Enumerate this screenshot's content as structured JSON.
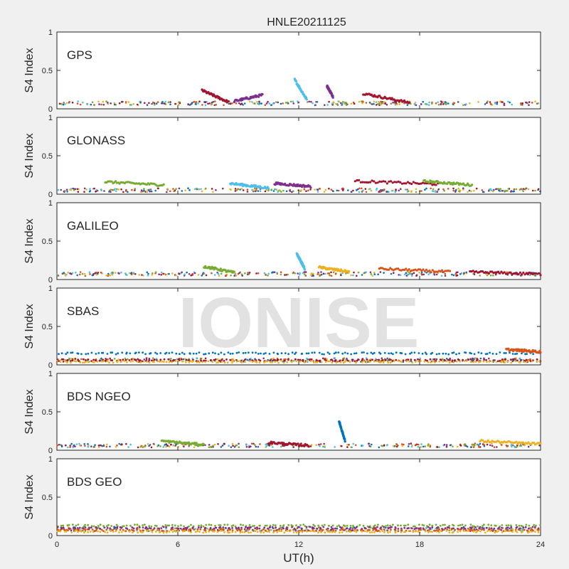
{
  "figure_title": "HNLE20211125",
  "watermark": "IONISE",
  "colors": [
    "#0072bd",
    "#d95319",
    "#edb120",
    "#7e2f8e",
    "#77ac30",
    "#4dbeee",
    "#a2142f"
  ],
  "chart_data": [
    {
      "type": "scatter",
      "panel": "GPS",
      "xlabel": "",
      "ylabel": "S4 Index",
      "xlim": [
        0,
        24
      ],
      "ylim": [
        0,
        1
      ],
      "xticks": [],
      "yticks": [
        "0",
        "0.5",
        "1"
      ],
      "background_level": 0.07,
      "features": [
        {
          "x": [
            7.2,
            8.5
          ],
          "y": [
            0.24,
            0.09
          ],
          "color": "#a2142f"
        },
        {
          "x": [
            8.8,
            10.2
          ],
          "y": [
            0.1,
            0.18
          ],
          "color": "#7e2f8e"
        },
        {
          "x": [
            11.8,
            12.4
          ],
          "y": [
            0.38,
            0.12
          ],
          "color": "#4dbeee"
        },
        {
          "x": [
            13.4,
            13.7
          ],
          "y": [
            0.3,
            0.16
          ],
          "color": "#7e2f8e"
        },
        {
          "x": [
            15.2,
            17.5
          ],
          "y": [
            0.2,
            0.08
          ],
          "color": "#a2142f"
        }
      ]
    },
    {
      "type": "scatter",
      "panel": "GLONASS",
      "xlabel": "",
      "ylabel": "S4 Index",
      "xlim": [
        0,
        24
      ],
      "ylim": [
        0,
        1
      ],
      "xticks": [],
      "yticks": [
        "0",
        "0.5",
        "1"
      ],
      "background_level": 0.05,
      "features": [
        {
          "x": [
            2.4,
            5.3
          ],
          "y": [
            0.16,
            0.12
          ],
          "color": "#77ac30"
        },
        {
          "x": [
            8.6,
            10.5
          ],
          "y": [
            0.14,
            0.08
          ],
          "color": "#4dbeee"
        },
        {
          "x": [
            10.8,
            12.6
          ],
          "y": [
            0.14,
            0.1
          ],
          "color": "#7e2f8e"
        },
        {
          "x": [
            14.8,
            19.0
          ],
          "y": [
            0.17,
            0.13
          ],
          "color": "#a2142f"
        },
        {
          "x": [
            18.2,
            20.6
          ],
          "y": [
            0.17,
            0.12
          ],
          "color": "#77ac30"
        }
      ]
    },
    {
      "type": "scatter",
      "panel": "GALILEO",
      "xlabel": "",
      "ylabel": "S4 Index",
      "xlim": [
        0,
        24
      ],
      "ylim": [
        0,
        1
      ],
      "xticks": [],
      "yticks": [
        "0",
        "0.5",
        "1"
      ],
      "background_level": 0.07,
      "features": [
        {
          "x": [
            7.3,
            8.8
          ],
          "y": [
            0.17,
            0.09
          ],
          "color": "#77ac30"
        },
        {
          "x": [
            11.9,
            12.3
          ],
          "y": [
            0.34,
            0.14
          ],
          "color": "#4dbeee"
        },
        {
          "x": [
            13.0,
            14.5
          ],
          "y": [
            0.16,
            0.1
          ],
          "color": "#edb120"
        },
        {
          "x": [
            16.0,
            19.5
          ],
          "y": [
            0.14,
            0.1
          ],
          "color": "#d95319"
        },
        {
          "x": [
            20.5,
            24.0
          ],
          "y": [
            0.1,
            0.07
          ],
          "color": "#a2142f"
        }
      ]
    },
    {
      "type": "scatter",
      "panel": "SBAS",
      "xlabel": "",
      "ylabel": "S4 Index",
      "xlim": [
        0,
        24
      ],
      "ylim": [
        0,
        1
      ],
      "xticks": [],
      "yticks": [
        "0",
        "0.5",
        "1"
      ],
      "background_level": 0.06,
      "bands": [
        {
          "y": 0.15,
          "color": "#0072bd"
        },
        {
          "y": 0.06,
          "color": "#a2142f"
        },
        {
          "y": 0.04,
          "color": "#edb120"
        }
      ],
      "features": [
        {
          "x": [
            22.3,
            24.0
          ],
          "y": [
            0.2,
            0.17
          ],
          "color": "#d95319"
        }
      ]
    },
    {
      "type": "scatter",
      "panel": "BDS NGEO",
      "xlabel": "",
      "ylabel": "S4 Index",
      "xlim": [
        0,
        24
      ],
      "ylim": [
        0,
        1
      ],
      "xticks": [],
      "yticks": [
        "0",
        "0.5",
        "1"
      ],
      "background_level": 0.06,
      "features": [
        {
          "x": [
            5.2,
            7.3
          ],
          "y": [
            0.12,
            0.07
          ],
          "color": "#77ac30"
        },
        {
          "x": [
            10.5,
            12.5
          ],
          "y": [
            0.1,
            0.06
          ],
          "color": "#a2142f"
        },
        {
          "x": [
            14.0,
            14.3
          ],
          "y": [
            0.38,
            0.12
          ],
          "color": "#0072bd"
        },
        {
          "x": [
            21.0,
            24.0
          ],
          "y": [
            0.12,
            0.08
          ],
          "color": "#edb120"
        }
      ]
    },
    {
      "type": "scatter",
      "panel": "BDS GEO",
      "xlabel": "UT(h)",
      "ylabel": "S4 Index",
      "xlim": [
        0,
        24
      ],
      "ylim": [
        0,
        1
      ],
      "xticks": [
        "0",
        "6",
        "12",
        "18",
        "24"
      ],
      "yticks": [
        "0",
        "0.5",
        "1"
      ],
      "background_level": 0.08,
      "bands": [
        {
          "y": 0.13,
          "color": "#77ac30"
        },
        {
          "y": 0.1,
          "color": "#7e2f8e"
        },
        {
          "y": 0.07,
          "color": "#d95319"
        },
        {
          "y": 0.05,
          "color": "#edb120"
        }
      ],
      "features": []
    }
  ]
}
